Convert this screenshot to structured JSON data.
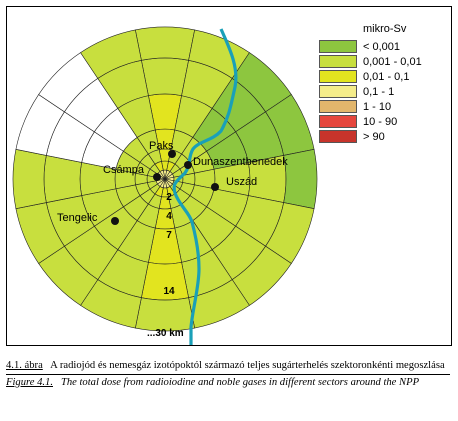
{
  "map": {
    "rivers_color": "#1aa0b8",
    "rings_km": [
      "2",
      "4",
      "7",
      "14"
    ],
    "distance_label": "...30 km",
    "places": [
      {
        "name": "Paks"
      },
      {
        "name": "Dunaszentbenedek"
      },
      {
        "name": "Csámpa"
      },
      {
        "name": "Uszád"
      },
      {
        "name": "Tengelic"
      }
    ]
  },
  "legend": {
    "title": "mikro-Sv",
    "items": [
      {
        "label": "< 0,001",
        "color": "#8dc63f"
      },
      {
        "label": "0,001 - 0,01",
        "color": "#c8df3e"
      },
      {
        "label": "0,01 - 0,1",
        "color": "#e2e41f"
      },
      {
        "label": "0,1 - 1",
        "color": "#f4ec8a"
      },
      {
        "label": "1 - 10",
        "color": "#e2b66c"
      },
      {
        "label": "10 - 90",
        "color": "#e5463d"
      },
      {
        "label": "> 90",
        "color": "#c7342b"
      }
    ]
  },
  "caption": {
    "hu_label": "4.1. ábra",
    "hu_text": "A radiojód és nemesgáz izotópoktól származó teljes sugárterhelés szektoronkénti megoszlása",
    "en_label": "Figure 4.1.",
    "en_text": "The total dose from radioiodine and noble gases in different sectors around the NPP"
  }
}
